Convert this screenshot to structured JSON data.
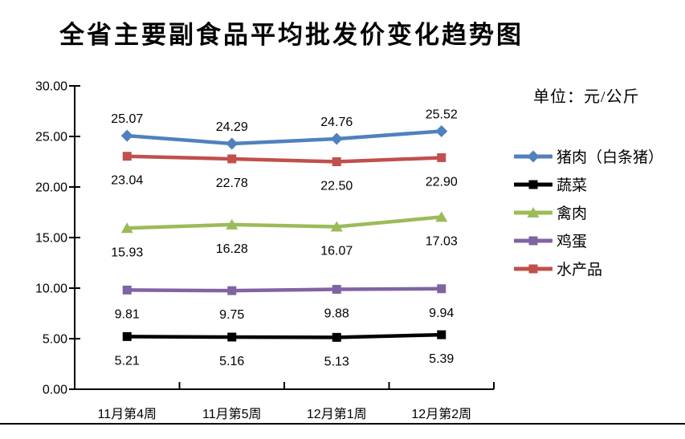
{
  "chart_data": {
    "type": "line",
    "title": "全省主要副食品平均批发价变化趋势图",
    "unit_label": "单位：元/公斤",
    "categories": [
      "11月第4周",
      "11月第5周",
      "12月第1周",
      "12月第2周"
    ],
    "series": [
      {
        "name": "猪肉（白条猪）",
        "values": [
          25.07,
          24.29,
          24.76,
          25.52
        ],
        "color": "#4F81BD",
        "marker": "diamond",
        "label_position": "above"
      },
      {
        "name": "蔬菜",
        "values": [
          5.21,
          5.16,
          5.13,
          5.39
        ],
        "color": "#000000",
        "marker": "square",
        "label_position": "below"
      },
      {
        "name": "禽肉",
        "values": [
          15.93,
          16.28,
          16.07,
          17.03
        ],
        "color": "#9BBB59",
        "marker": "triangle",
        "label_position": "below"
      },
      {
        "name": "鸡蛋",
        "values": [
          9.81,
          9.75,
          9.88,
          9.94
        ],
        "color": "#8064A2",
        "marker": "square",
        "label_position": "below"
      },
      {
        "name": "水产品",
        "values": [
          23.04,
          22.78,
          22.5,
          22.9
        ],
        "color": "#C0504D",
        "marker": "square",
        "label_position": "below"
      }
    ],
    "y_axis": {
      "min": 0,
      "max": 30,
      "step": 5,
      "tick_labels": [
        "0.00",
        "5.00",
        "10.00",
        "15.00",
        "20.00",
        "25.00",
        "30.00"
      ]
    },
    "x_axis_label": "",
    "ylabel": "",
    "legend_position": "right",
    "grid": false,
    "axis_color": "#000000",
    "data_label_decimals": 2
  }
}
